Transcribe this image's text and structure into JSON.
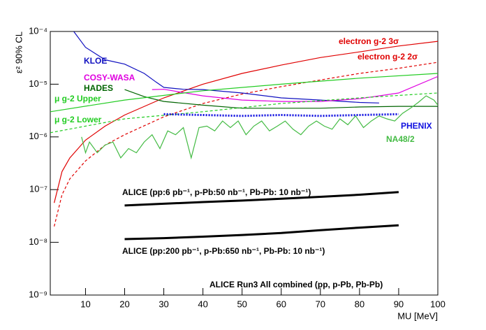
{
  "chart_data": {
    "type": "line",
    "log_y": true,
    "x_label": "MU [MeV]",
    "y_label": "ε² 90% CL",
    "annotations": [
      "ALICE Run3   All combined (pp, p-Pb, Pb-Pb)"
    ],
    "xlim": [
      1,
      100
    ],
    "xticks": [
      10,
      20,
      30,
      40,
      50,
      60,
      70,
      80,
      90,
      100
    ],
    "ylim": [
      1e-09,
      0.0001
    ],
    "yticks": [
      {
        "value": 1e-09,
        "label": "10⁻⁹"
      },
      {
        "value": 1e-08,
        "label": "10⁻⁸"
      },
      {
        "value": 1e-07,
        "label": "10⁻⁷"
      },
      {
        "value": 1e-06,
        "label": "10⁻⁶"
      },
      {
        "value": 1e-05,
        "label": "10⁻⁵"
      },
      {
        "value": 0.0001,
        "label": "10⁻⁴"
      }
    ],
    "series": [
      {
        "name": "electron g-2 3σ",
        "color": "#e00000",
        "dash": false,
        "x": [
          2,
          4,
          6,
          10,
          15,
          20,
          30,
          40,
          50,
          60,
          70,
          80,
          90,
          100
        ],
        "values": [
          5.6e-08,
          2.2e-07,
          4e-07,
          8.7e-07,
          1.6e-06,
          2.6e-06,
          5.5e-06,
          1e-05,
          1.6e-05,
          2.3e-05,
          3.2e-05,
          4.1e-05,
          5.3e-05,
          6.5e-05
        ]
      },
      {
        "name": "electron g-2 2σ",
        "color": "#e00000",
        "dash": true,
        "x": [
          2,
          4,
          6,
          10,
          15,
          20,
          30,
          40,
          50,
          60,
          70,
          80,
          90,
          100
        ],
        "values": [
          2e-08,
          8e-08,
          1.6e-07,
          3.5e-07,
          7e-07,
          1.1e-06,
          2.4e-06,
          4.3e-06,
          6.5e-06,
          9e-06,
          1.2e-05,
          1.6e-05,
          2e-05,
          2.6e-05
        ]
      },
      {
        "name": "KLOE",
        "color": "#1010c0",
        "dash": false,
        "x": [
          7,
          10,
          15,
          20,
          25,
          28,
          30,
          35,
          40,
          50,
          60,
          70,
          80,
          85
        ],
        "values": [
          0.0001,
          5e-05,
          2.9e-05,
          2.4e-05,
          1.6e-05,
          1.1e-05,
          8.7e-06,
          8e-06,
          7.9e-06,
          6.8e-06,
          5.5e-06,
          5e-06,
          4.5e-06,
          4.4e-06
        ]
      },
      {
        "name": "COSY-WASA",
        "color": "#e000e0",
        "dash": false,
        "x": [
          27,
          30,
          40,
          50,
          60,
          70,
          80,
          90,
          100
        ],
        "values": [
          7.9e-06,
          8e-06,
          6e-06,
          5e-06,
          4.7e-06,
          4.7e-06,
          5.3e-06,
          6.8e-06,
          1.4e-05
        ]
      },
      {
        "name": "HADES",
        "color": "#006400",
        "dash": false,
        "x": [
          20,
          25,
          30,
          40,
          50,
          60,
          70,
          80,
          90,
          100
        ],
        "values": [
          7.9e-06,
          5.8e-06,
          4.7e-06,
          4e-06,
          3.5e-06,
          3.5e-06,
          3.5e-06,
          3.7e-06,
          3.8e-06,
          3.8e-06
        ]
      },
      {
        "name": "μ g-2 Upper",
        "color": "#22cc22",
        "dash": false,
        "x": [
          1,
          20,
          40,
          60,
          80,
          100
        ],
        "values": [
          3e-06,
          5e-06,
          7.5e-06,
          1e-05,
          1.3e-05,
          1.6e-05
        ]
      },
      {
        "name": "μ g-2 Lower",
        "color": "#22cc22",
        "dash": true,
        "x": [
          1,
          20,
          40,
          60,
          80,
          100
        ],
        "values": [
          1.2e-06,
          2.2e-06,
          3e-06,
          4.3e-06,
          5.5e-06,
          6.8e-06
        ]
      },
      {
        "name": "PHENIX",
        "color": "#1010e0",
        "dash": true,
        "line_width": 3,
        "x": [
          30,
          40,
          50,
          60,
          70,
          80,
          90
        ],
        "values": [
          2.7e-06,
          2.6e-06,
          2.5e-06,
          2.6e-06,
          2.5e-06,
          2.6e-06,
          2.7e-06
        ]
      },
      {
        "name": "NA48/2",
        "color": "#44bb44",
        "dash": false,
        "x": [
          9,
          10,
          11,
          13,
          15,
          17,
          19,
          21,
          23,
          25,
          27,
          29,
          31,
          33,
          35,
          37,
          39,
          41,
          43,
          45,
          47,
          49,
          51,
          53,
          55,
          57,
          59,
          61,
          63,
          65,
          67,
          69,
          71,
          73,
          75,
          77,
          79,
          81,
          83,
          85,
          87,
          89,
          91,
          93,
          95,
          97,
          99,
          100
        ],
        "values": [
          1e-06,
          5e-07,
          8e-07,
          5e-07,
          7e-07,
          8e-07,
          4e-07,
          6e-07,
          5e-07,
          8e-07,
          1.1e-06,
          6e-07,
          1.3e-06,
          1.1e-06,
          1.5e-06,
          4e-07,
          1.5e-06,
          1.6e-06,
          1.3e-06,
          2e-06,
          1.5e-06,
          2e-06,
          1.1e-06,
          1.6e-06,
          2e-06,
          1.3e-06,
          1.6e-06,
          2e-06,
          1.4e-06,
          1.1e-06,
          1.6e-06,
          2e-06,
          1.6e-06,
          1.4e-06,
          2.2e-06,
          1.7e-06,
          2.5e-06,
          1.5e-06,
          2e-06,
          2.5e-06,
          2.2e-06,
          2e-06,
          2.8e-06,
          3.5e-06,
          4.5e-06,
          6e-06,
          5e-06,
          4e-06
        ]
      },
      {
        "name": "ALICE (pp:6 pb⁻¹, p-Pb:50 nb⁻¹, Pb-Pb: 10 nb⁻¹)",
        "color": "#000000",
        "dash": false,
        "line_width": 3,
        "x": [
          20,
          30,
          40,
          50,
          60,
          70,
          80,
          90
        ],
        "values": [
          5e-08,
          5.4e-08,
          5.8e-08,
          6.2e-08,
          6.7e-08,
          7.3e-08,
          8e-08,
          9e-08
        ]
      },
      {
        "name": "ALICE (pp:200 pb⁻¹, p-Pb:650 nb⁻¹, Pb-Pb: 10 nb⁻¹)",
        "color": "#000000",
        "dash": false,
        "line_width": 3,
        "x": [
          20,
          30,
          40,
          50,
          60,
          70,
          80,
          90
        ],
        "values": [
          1.15e-08,
          1.2e-08,
          1.28e-08,
          1.38e-08,
          1.5e-08,
          1.7e-08,
          1.9e-08,
          2.1e-08
        ]
      }
    ]
  }
}
